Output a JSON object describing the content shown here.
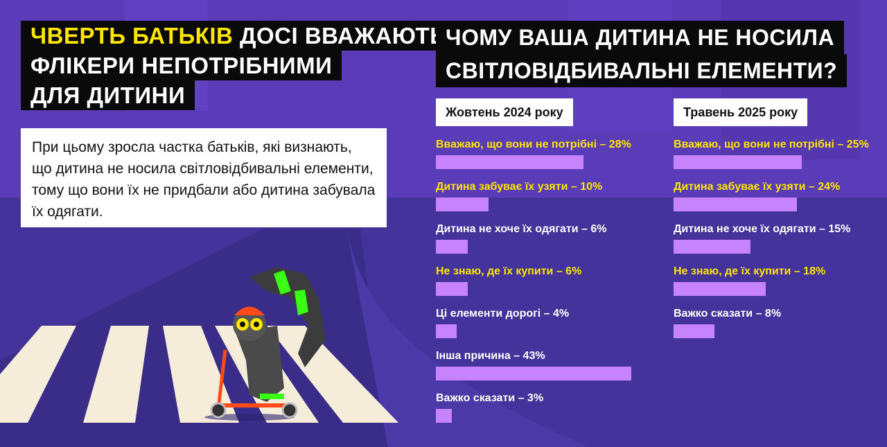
{
  "colors": {
    "background": "#4a35a3",
    "bar": "#c683fb",
    "highlight": "#ffe600",
    "title_bg": "#0a0a0a"
  },
  "left": {
    "title_highlight": "ЧВЕРТЬ БАТЬКІВ",
    "title_rest_line1": " ДОСІ ВВАЖАЮТЬ",
    "title_line2": "ФЛІКЕРИ НЕПОТРІБНИМИ",
    "title_line3": "ДЛЯ ДИТИНИ",
    "description": "При цьому зросла частка батьків, які визнають, що дитина не носила світловідбивальні елементи, тому що вони їх не придбали або дитина забувала їх одягати."
  },
  "right": {
    "title_line1": "ЧОМУ ВАША ДИТИНА НЕ НОСИЛА",
    "title_line2": "СВІТЛОВІДБИВАЛЬНІ ЕЛЕМЕНТИ?"
  },
  "chart_data": [
    {
      "type": "bar",
      "orientation": "horizontal",
      "title": "Жовтень 2024 року",
      "categories": [
        "Вважаю, що вони не потрібні – 28%",
        "Дитина забуває їх узяти – 10%",
        "Дитина не хоче їх одягати – 6%",
        "Не знаю, де їх купити – 6%",
        "Ці елементи дорогі – 4%",
        "Інша причина – 43%",
        "Важко сказати – 3%"
      ],
      "values": [
        28,
        10,
        6,
        6,
        4,
        43,
        3
      ],
      "highlighted": [
        true,
        true,
        false,
        true,
        false,
        false,
        false
      ]
    },
    {
      "type": "bar",
      "orientation": "horizontal",
      "title": "Травень 2025 року",
      "categories": [
        "Вважаю, що вони не потрібні – 25%",
        "Дитина забуває їх узяти – 24%",
        "Дитина не хоче їх одягати – 15%",
        "Не знаю, де їх купити – 18%",
        "Важко сказати – 8%"
      ],
      "values": [
        25,
        24,
        15,
        18,
        8
      ],
      "highlighted": [
        true,
        true,
        false,
        true,
        false
      ]
    }
  ]
}
